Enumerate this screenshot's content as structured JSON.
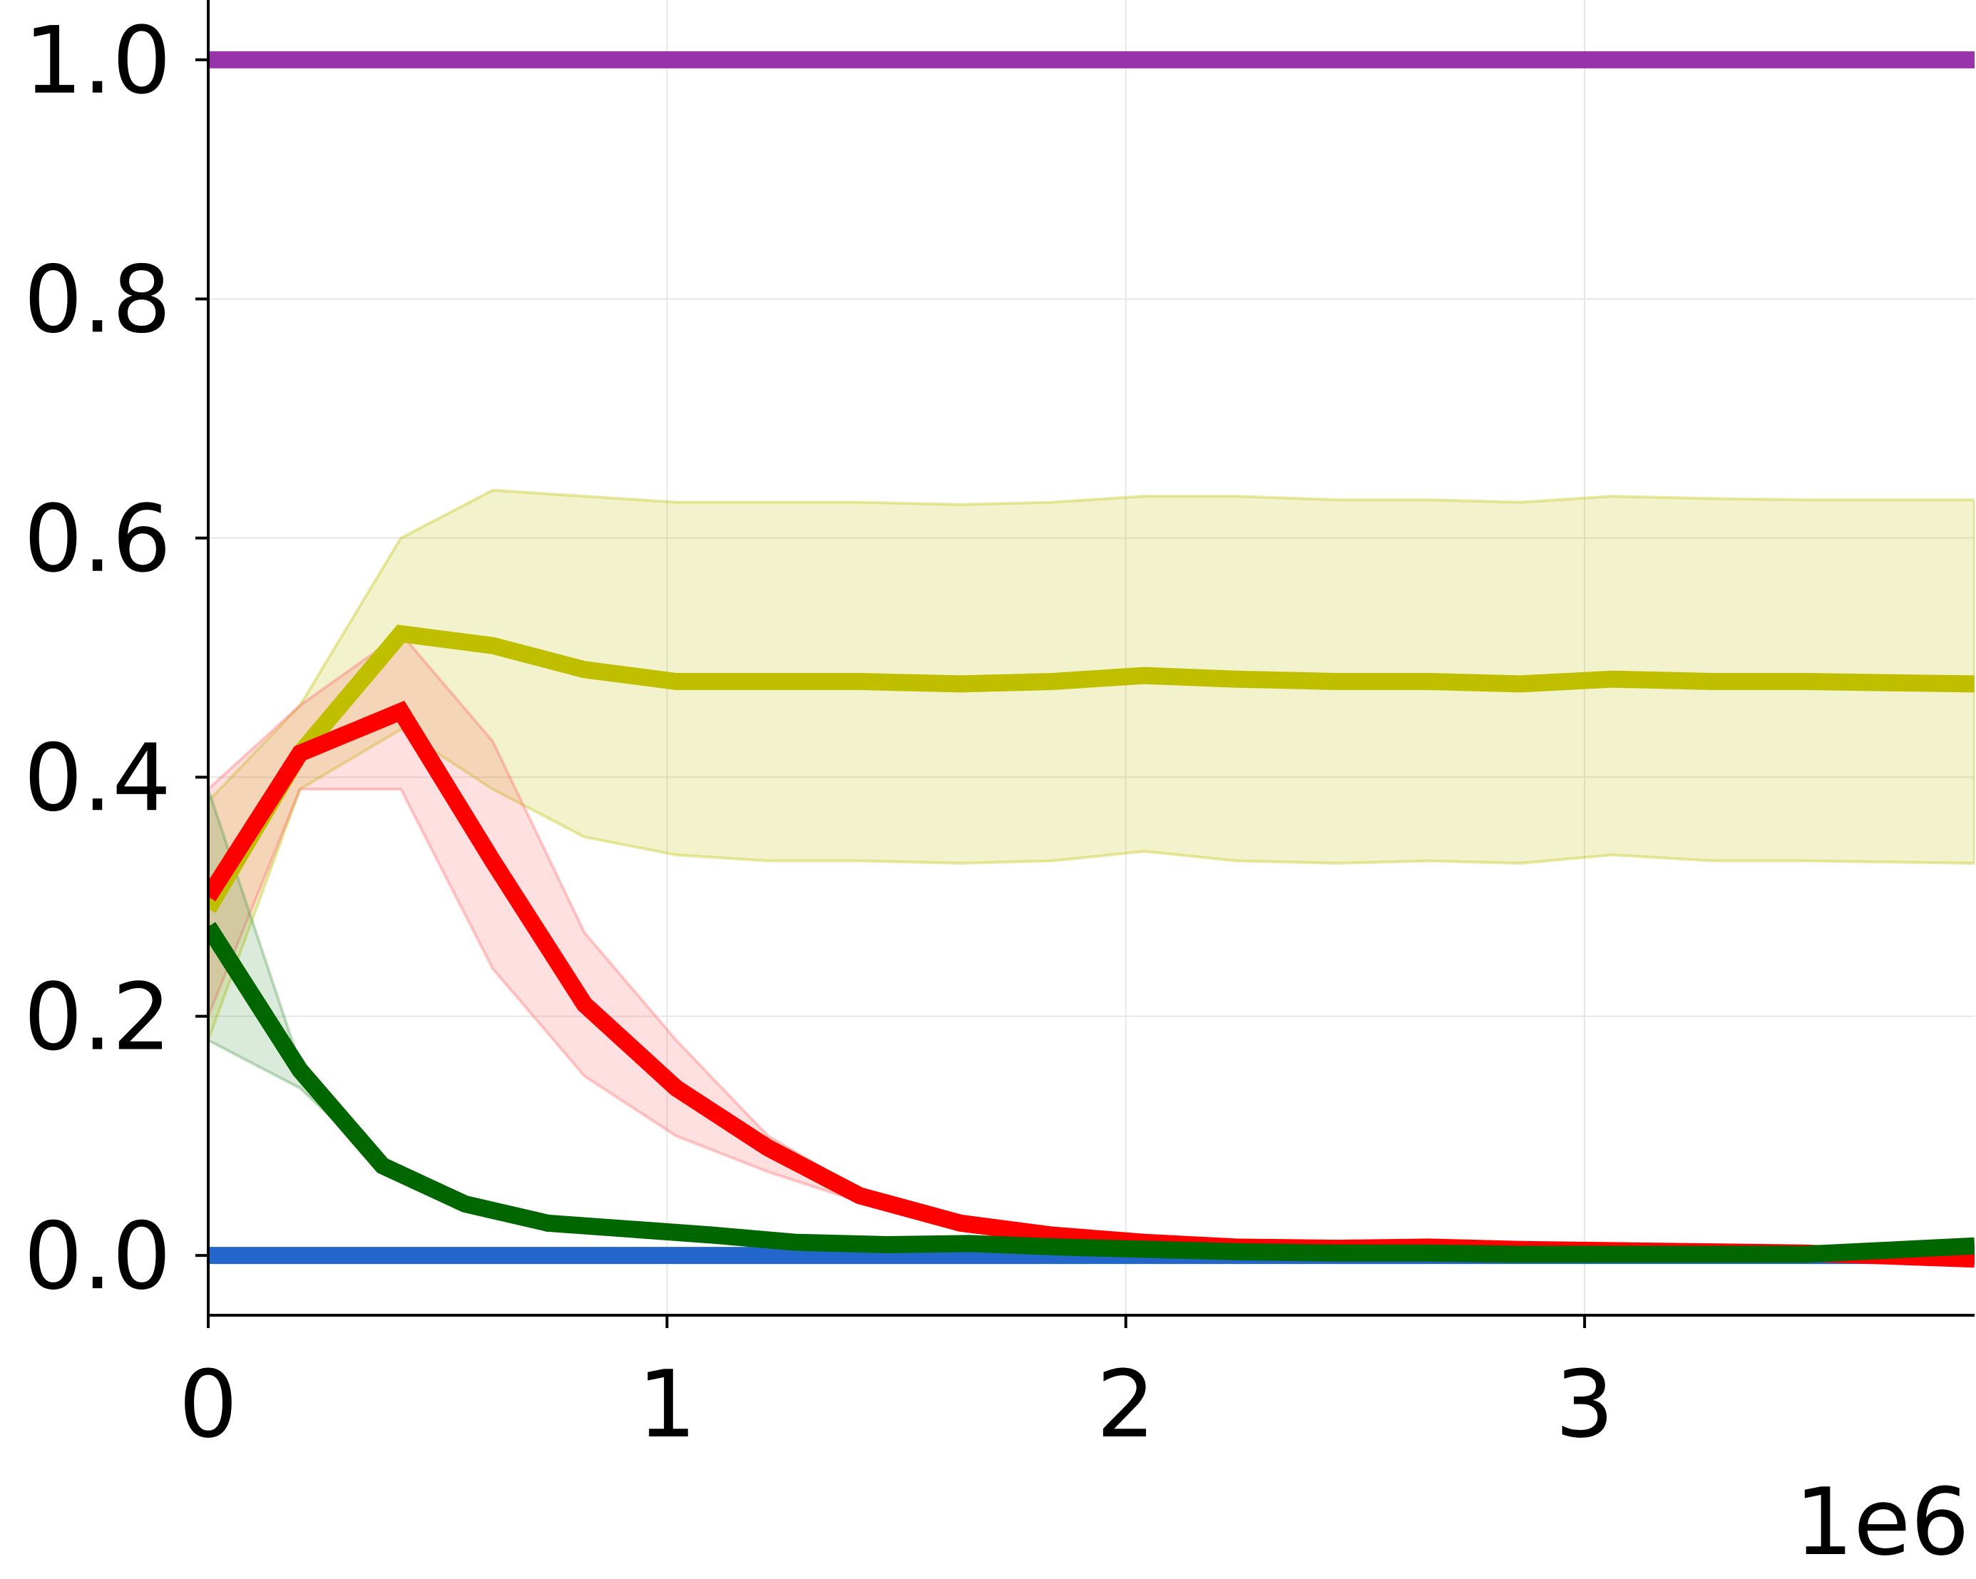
{
  "chart_data": {
    "type": "line",
    "title": "",
    "xlabel": "",
    "ylabel": "",
    "x_offset_label": "1e6",
    "xlim": [
      0,
      3.85
    ],
    "ylim": [
      -0.05,
      1.05
    ],
    "x_ticks": [
      0,
      1,
      2,
      3
    ],
    "x_tick_labels": [
      "0",
      "1",
      "2",
      "3"
    ],
    "y_ticks": [
      0.0,
      0.2,
      0.4,
      0.6,
      0.8,
      1.0
    ],
    "y_tick_labels": [
      "0.0",
      "0.2",
      "0.4",
      "0.6",
      "0.8",
      "1.0"
    ],
    "grid": true,
    "legend": "none",
    "series": [
      {
        "color": "#9933aa",
        "x": [
          0,
          3.85
        ],
        "y": [
          1.0,
          1.0
        ]
      },
      {
        "color": "#2266cc",
        "x": [
          0,
          3.85
        ],
        "y": [
          0.0,
          0.0
        ]
      },
      {
        "color": "#bfbf00",
        "band_color": "#bfbf00",
        "x": [
          0,
          0.2,
          0.42,
          0.62,
          0.82,
          1.02,
          1.22,
          1.42,
          1.64,
          1.84,
          2.04,
          2.24,
          2.46,
          2.66,
          2.86,
          3.06,
          3.28,
          3.48,
          3.85
        ],
        "y": [
          0.29,
          0.42,
          0.52,
          0.51,
          0.49,
          0.48,
          0.48,
          0.48,
          0.478,
          0.48,
          0.485,
          0.482,
          0.48,
          0.48,
          0.478,
          0.482,
          0.48,
          0.48,
          0.478
        ],
        "lower": [
          0.18,
          0.39,
          0.44,
          0.39,
          0.35,
          0.335,
          0.33,
          0.33,
          0.328,
          0.33,
          0.338,
          0.33,
          0.328,
          0.33,
          0.328,
          0.335,
          0.33,
          0.33,
          0.328
        ],
        "upper": [
          0.38,
          0.46,
          0.6,
          0.64,
          0.635,
          0.63,
          0.63,
          0.63,
          0.628,
          0.63,
          0.635,
          0.635,
          0.632,
          0.632,
          0.63,
          0.635,
          0.633,
          0.632,
          0.632
        ]
      },
      {
        "color": "#ff0000",
        "band_color": "#ff6666",
        "x": [
          0,
          0.2,
          0.42,
          0.62,
          0.82,
          1.02,
          1.22,
          1.42,
          1.64,
          1.84,
          2.04,
          2.24,
          2.46,
          2.66,
          2.86,
          3.06,
          3.28,
          3.48,
          3.85
        ],
        "y": [
          0.3,
          0.42,
          0.455,
          0.33,
          0.21,
          0.14,
          0.09,
          0.05,
          0.027,
          0.017,
          0.011,
          0.007,
          0.006,
          0.007,
          0.005,
          0.004,
          0.003,
          0.002,
          -0.003
        ],
        "lower": [
          0.2,
          0.39,
          0.39,
          0.24,
          0.15,
          0.1,
          0.07,
          0.045,
          0.022,
          0.013,
          0.008,
          0.005,
          0.004,
          0.005,
          0.003,
          0.002,
          0.001,
          0.0,
          -0.006
        ],
        "upper": [
          0.39,
          0.46,
          0.52,
          0.43,
          0.27,
          0.18,
          0.1,
          0.055,
          0.03,
          0.02,
          0.014,
          0.009,
          0.008,
          0.009,
          0.007,
          0.006,
          0.005,
          0.004,
          0.0
        ]
      },
      {
        "color": "#006600",
        "band_color": "#4d9a4d",
        "x": [
          0,
          0.2,
          0.38,
          0.56,
          0.74,
          0.92,
          1.1,
          1.28,
          1.48,
          1.66,
          1.86,
          2.06,
          2.26,
          2.46,
          2.66,
          2.86,
          3.06,
          3.28,
          3.48,
          3.85
        ],
        "y": [
          0.275,
          0.155,
          0.075,
          0.043,
          0.027,
          0.022,
          0.017,
          0.011,
          0.009,
          0.01,
          0.007,
          0.005,
          0.003,
          0.002,
          0.002,
          0.001,
          0.001,
          0.001,
          0.001,
          0.008
        ],
        "lower": [
          0.18,
          0.14,
          0.075,
          0.043,
          0.027,
          0.022,
          0.017,
          0.011,
          0.009,
          0.01,
          0.007,
          0.005,
          0.003,
          0.002,
          0.002,
          0.001,
          0.001,
          0.001,
          0.001,
          0.008
        ],
        "upper": [
          0.39,
          0.16,
          0.075,
          0.043,
          0.027,
          0.022,
          0.017,
          0.011,
          0.009,
          0.01,
          0.007,
          0.005,
          0.003,
          0.002,
          0.002,
          0.001,
          0.001,
          0.001,
          0.001,
          0.008
        ]
      }
    ]
  }
}
